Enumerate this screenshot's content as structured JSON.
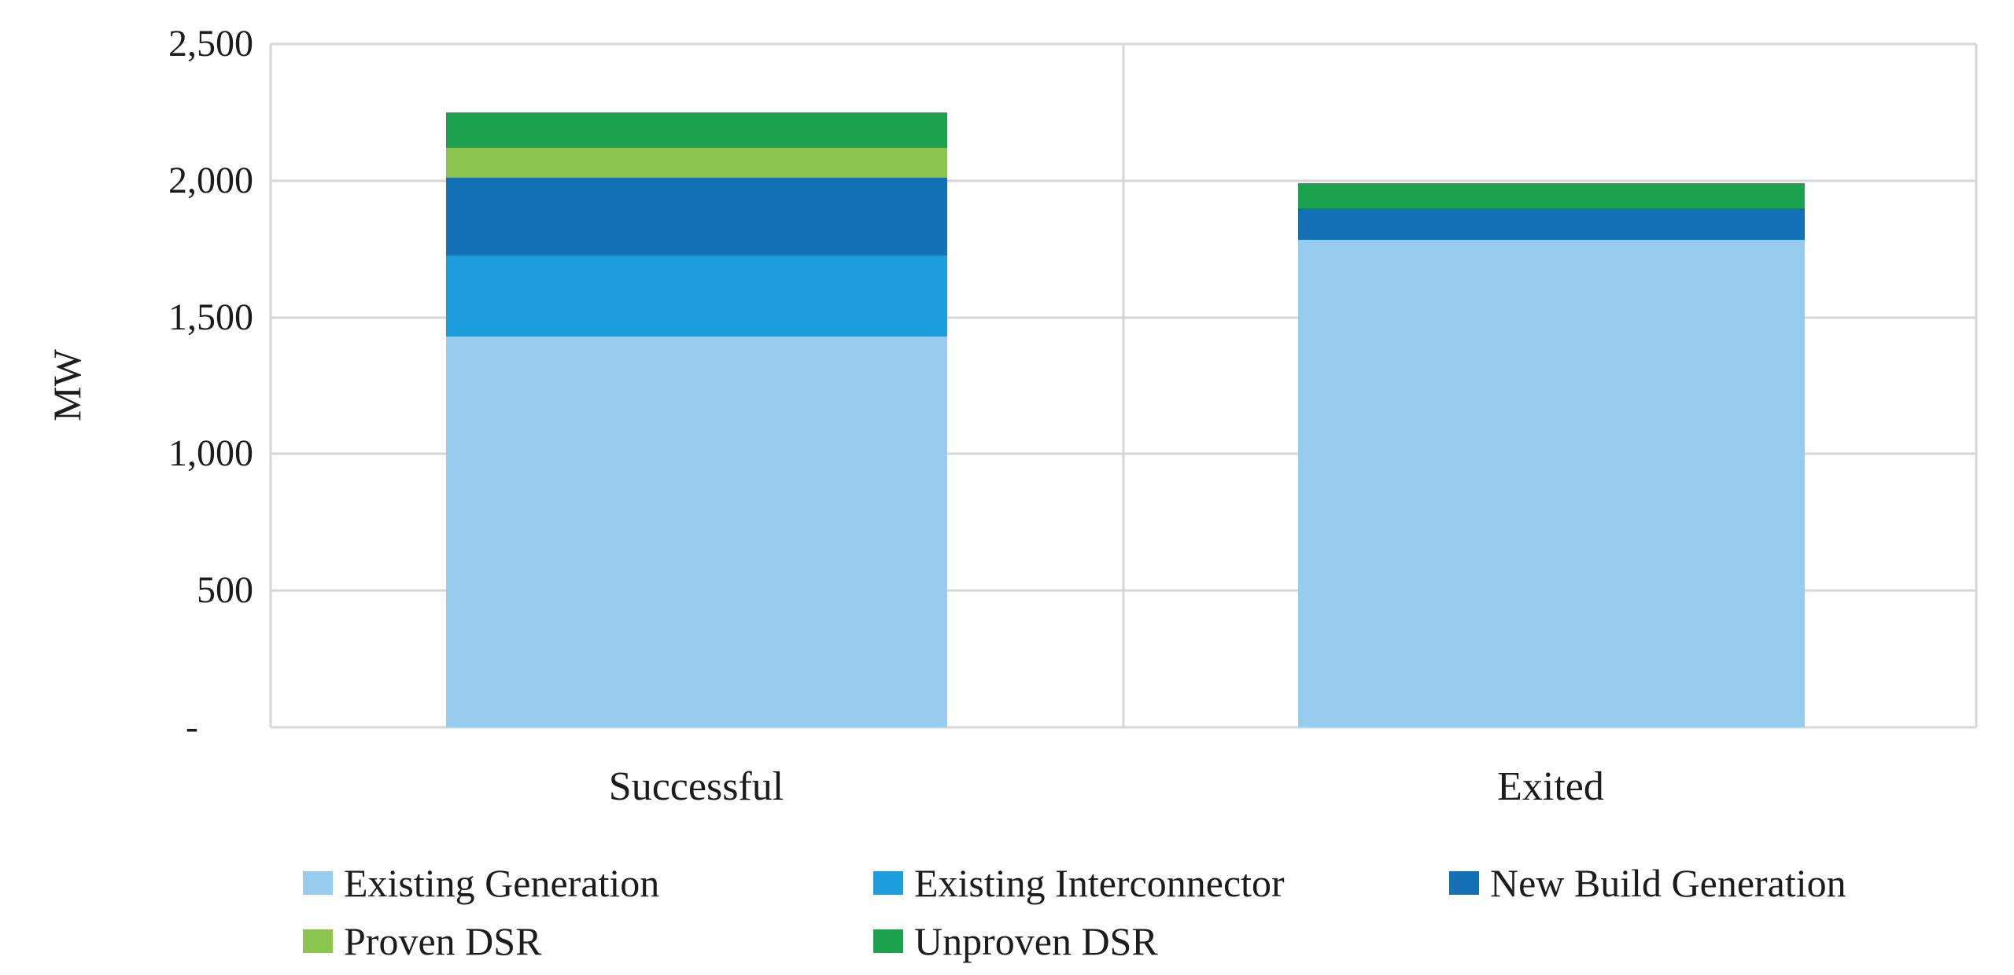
{
  "chart_data": {
    "type": "bar",
    "stacked": true,
    "title": "",
    "xlabel": "",
    "ylabel": "MW",
    "ylim": [
      0,
      2500
    ],
    "ytick_interval": 500,
    "ytick_labels": [
      "2,500",
      "2,000",
      "1,500",
      "1,000",
      "500",
      "-"
    ],
    "grid": true,
    "legend_position": "bottom",
    "categories": [
      "Successful",
      "Exited"
    ],
    "category_totals": [
      2250,
      1990
    ],
    "series": [
      {
        "name": "Existing Generation",
        "color": "#97CCEE",
        "values": [
          1430,
          1785
        ]
      },
      {
        "name": "Existing Interconnector",
        "color": "#1C9DDD",
        "values": [
          295,
          0
        ]
      },
      {
        "name": "New Build Generation",
        "color": "#1372B6",
        "values": [
          285,
          115
        ]
      },
      {
        "name": "Proven DSR",
        "color": "#8BC44F",
        "values": [
          110,
          0
        ]
      },
      {
        "name": "Unproven DSR",
        "color": "#1DA350",
        "values": [
          130,
          90
        ]
      }
    ],
    "gridline_color": "#D6D6D6",
    "text_color": "#1C1C1C",
    "background_color": "#FFFFFF"
  }
}
